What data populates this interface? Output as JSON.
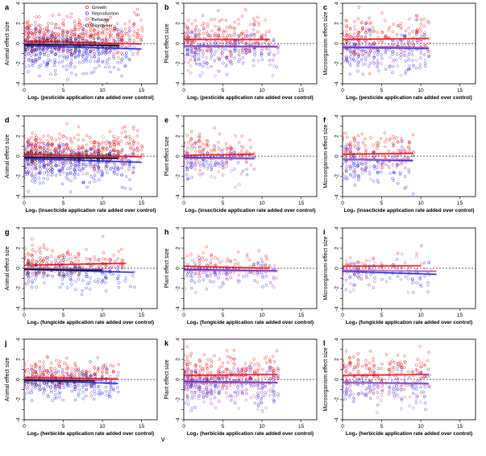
{
  "figure": {
    "stray_mark": "v",
    "colors": {
      "red": "#e8141c",
      "blue": "#2828e6",
      "purple": "#b45ab4",
      "black": "#111111",
      "zero_line": "#333333"
    }
  },
  "chart_data": [
    {
      "type": "scatter",
      "panel": "a",
      "ylabel": "Animal effect size",
      "xlabel": "Log₂ (pesticide application rate added over control)",
      "xlim": [
        0,
        17
      ],
      "ylim": [
        -4,
        4
      ],
      "xticks": [
        0,
        5,
        10,
        15
      ],
      "yticks": [
        -4,
        -3,
        -2,
        -1,
        0,
        1,
        2,
        3,
        4
      ],
      "legend": {
        "position": "top",
        "entries": [
          "Growth",
          "Reproduction",
          "Behavior",
          "Biomarker"
        ]
      },
      "series": [
        {
          "legend": "Growth",
          "color": "red",
          "x_range": [
            0,
            15
          ],
          "mean": 0.8,
          "sd": 0.9,
          "n": 380,
          "fit": [
            [
              0,
              0.25
            ],
            [
              15,
              -0.05
            ]
          ]
        },
        {
          "legend": "Reproduction",
          "color": "blue",
          "x_range": [
            0,
            14
          ],
          "mean": -0.8,
          "sd": 1.0,
          "n": 340,
          "fit": [
            [
              0,
              -0.2
            ],
            [
              15,
              -0.55
            ]
          ]
        },
        {
          "legend": "Behavior",
          "color": "purple",
          "x_range": [
            0,
            12
          ],
          "mean": -0.2,
          "sd": 0.7,
          "n": 60,
          "fit": [
            [
              0,
              0.0
            ],
            [
              12,
              -0.15
            ]
          ]
        },
        {
          "legend": "Biomarker",
          "color": "black",
          "x_range": [
            0,
            12
          ],
          "mean": -0.05,
          "sd": 0.3,
          "n": 140,
          "fit": [
            [
              0,
              -0.1
            ],
            [
              12,
              -0.2
            ]
          ]
        }
      ]
    },
    {
      "type": "scatter",
      "panel": "b",
      "ylabel": "Plant effect size",
      "xlabel": "Log₂ (pesticide application rate added over control)",
      "xlim": [
        0,
        17
      ],
      "ylim": [
        -4,
        4
      ],
      "xticks": [
        0,
        5,
        10,
        15
      ],
      "yticks": [
        -4,
        -3,
        -2,
        -1,
        0,
        1,
        2,
        3,
        4
      ],
      "series": [
        {
          "color": "red",
          "x_range": [
            0,
            11
          ],
          "mean": 0.7,
          "sd": 1.0,
          "n": 200,
          "fit": [
            [
              0,
              0.4
            ],
            [
              11,
              0.4
            ]
          ]
        },
        {
          "color": "blue",
          "x_range": [
            0,
            12
          ],
          "mean": -0.6,
          "sd": 0.9,
          "n": 150,
          "fit": [
            [
              0,
              -0.25
            ],
            [
              12,
              -0.3
            ]
          ]
        },
        {
          "color": "purple",
          "x_range": [
            0,
            12
          ],
          "mean": -1.0,
          "sd": 1.1,
          "n": 90,
          "fit": [
            [
              0,
              -0.3
            ],
            [
              12,
              -0.35
            ]
          ]
        }
      ]
    },
    {
      "type": "scatter",
      "panel": "c",
      "ylabel": "Microorganism effect size",
      "xlabel": "Log₂ (pesticide application rate added over control)",
      "xlim": [
        0,
        17
      ],
      "ylim": [
        -4,
        4
      ],
      "xticks": [
        0,
        5,
        10,
        15
      ],
      "yticks": [
        -4,
        -3,
        -2,
        -1,
        0,
        1,
        2,
        3,
        4
      ],
      "series": [
        {
          "color": "red",
          "x_range": [
            0,
            11
          ],
          "mean": 0.8,
          "sd": 1.0,
          "n": 180,
          "fit": [
            [
              0,
              0.4
            ],
            [
              11,
              0.5
            ]
          ]
        },
        {
          "color": "blue",
          "x_range": [
            0,
            11
          ],
          "mean": -0.9,
          "sd": 1.0,
          "n": 160,
          "fit": [
            [
              0,
              -0.4
            ],
            [
              11,
              -0.5
            ]
          ]
        },
        {
          "color": "purple",
          "x_range": [
            0,
            11
          ],
          "mean": -0.8,
          "sd": 1.0,
          "n": 60,
          "fit": [
            [
              0,
              -0.3
            ],
            [
              11,
              -0.4
            ]
          ]
        }
      ]
    },
    {
      "type": "scatter",
      "panel": "d",
      "ylabel": "Animal effect size",
      "xlabel": "Log₂ (insecticide application rate added over control)",
      "xlim": [
        0,
        17
      ],
      "ylim": [
        -4,
        4
      ],
      "xticks": [
        0,
        5,
        10,
        15
      ],
      "yticks": [
        -4,
        -3,
        -2,
        -1,
        0,
        1,
        2,
        3,
        4
      ],
      "series": [
        {
          "color": "red",
          "x_range": [
            0,
            15
          ],
          "mean": 0.7,
          "sd": 0.9,
          "n": 360,
          "fit": [
            [
              0,
              0.2
            ],
            [
              15,
              -0.05
            ]
          ]
        },
        {
          "color": "blue",
          "x_range": [
            0,
            14
          ],
          "mean": -0.8,
          "sd": 1.0,
          "n": 330,
          "fit": [
            [
              0,
              -0.2
            ],
            [
              15,
              -0.6
            ]
          ]
        },
        {
          "color": "purple",
          "x_range": [
            0,
            12
          ],
          "mean": -0.2,
          "sd": 0.7,
          "n": 50,
          "fit": [
            [
              0,
              0.0
            ],
            [
              12,
              -0.15
            ]
          ]
        },
        {
          "color": "black",
          "x_range": [
            0,
            12
          ],
          "mean": -0.05,
          "sd": 0.3,
          "n": 130,
          "fit": [
            [
              0,
              -0.1
            ],
            [
              12,
              -0.2
            ]
          ]
        }
      ]
    },
    {
      "type": "scatter",
      "panel": "e",
      "ylabel": "Plant effect size",
      "xlabel": "Log₂ (insecticide application rate added over control)",
      "xlim": [
        0,
        17
      ],
      "ylim": [
        -4,
        4
      ],
      "xticks": [
        0,
        5,
        10,
        15
      ],
      "yticks": [
        -4,
        -3,
        -2,
        -1,
        0,
        1,
        2,
        3,
        4
      ],
      "series": [
        {
          "color": "red",
          "x_range": [
            0,
            9
          ],
          "mean": 0.6,
          "sd": 0.8,
          "n": 110,
          "fit": [
            [
              0,
              0.1
            ],
            [
              9,
              0.2
            ]
          ]
        },
        {
          "color": "blue",
          "x_range": [
            0,
            9
          ],
          "mean": -0.5,
          "sd": 0.8,
          "n": 80,
          "fit": [
            [
              0,
              -0.1
            ],
            [
              9,
              -0.2
            ]
          ]
        },
        {
          "color": "purple",
          "x_range": [
            0,
            9
          ],
          "mean": -0.8,
          "sd": 1.0,
          "n": 40,
          "fit": [
            [
              0,
              -0.2
            ],
            [
              9,
              -0.25
            ]
          ]
        }
      ]
    },
    {
      "type": "scatter",
      "panel": "f",
      "ylabel": "Microorganism effect size",
      "xlabel": "Log₂ (insecticide application rate added over control)",
      "xlim": [
        0,
        17
      ],
      "ylim": [
        -4,
        4
      ],
      "xticks": [
        0,
        5,
        10,
        15
      ],
      "yticks": [
        -4,
        -3,
        -2,
        -1,
        0,
        1,
        2,
        3,
        4
      ],
      "series": [
        {
          "color": "red",
          "x_range": [
            0,
            9
          ],
          "mean": 0.6,
          "sd": 0.9,
          "n": 120,
          "fit": [
            [
              0,
              0.2
            ],
            [
              9,
              0.3
            ]
          ]
        },
        {
          "color": "blue",
          "x_range": [
            0,
            9
          ],
          "mean": -0.8,
          "sd": 0.9,
          "n": 110,
          "fit": [
            [
              0,
              -0.3
            ],
            [
              9,
              -0.45
            ]
          ]
        },
        {
          "color": "purple",
          "x_range": [
            0,
            9
          ],
          "mean": -0.6,
          "sd": 0.9,
          "n": 40,
          "fit": [
            [
              0,
              -0.3
            ],
            [
              9,
              -0.35
            ]
          ]
        }
      ]
    },
    {
      "type": "scatter",
      "panel": "g",
      "ylabel": "Animal effect size",
      "xlabel": "Log₂ (fungicide application rate added over control)",
      "xlim": [
        0,
        17
      ],
      "ylim": [
        -4,
        4
      ],
      "xticks": [
        0,
        5,
        10,
        15
      ],
      "yticks": [
        -4,
        -3,
        -2,
        -1,
        0,
        1,
        2,
        3,
        4
      ],
      "series": [
        {
          "color": "red",
          "x_range": [
            0,
            13
          ],
          "mean": 0.7,
          "sd": 0.7,
          "n": 150,
          "fit": [
            [
              0,
              0.3
            ],
            [
              13,
              0.5
            ]
          ]
        },
        {
          "color": "blue",
          "x_range": [
            0,
            14
          ],
          "mean": -0.7,
          "sd": 0.8,
          "n": 120,
          "fit": [
            [
              0,
              -0.1
            ],
            [
              14,
              -0.4
            ]
          ]
        },
        {
          "color": "purple",
          "x_range": [
            0,
            10
          ],
          "mean": -0.3,
          "sd": 0.6,
          "n": 30,
          "fit": [
            [
              0,
              0.0
            ],
            [
              10,
              -0.1
            ]
          ]
        },
        {
          "color": "black",
          "x_range": [
            0,
            10
          ],
          "mean": -0.1,
          "sd": 0.4,
          "n": 50,
          "fit": [
            [
              0,
              -0.1
            ],
            [
              10,
              -0.2
            ]
          ]
        }
      ]
    },
    {
      "type": "scatter",
      "panel": "h",
      "ylabel": "Plant effect size",
      "xlabel": "Log₂ (fungicide application rate added over control)",
      "xlim": [
        0,
        17
      ],
      "ylim": [
        -4,
        4
      ],
      "xticks": [
        0,
        5,
        10,
        15
      ],
      "yticks": [
        -4,
        -3,
        -2,
        -1,
        0,
        1,
        2,
        3,
        4
      ],
      "series": [
        {
          "color": "red",
          "x_range": [
            0,
            11
          ],
          "mean": 0.4,
          "sd": 0.7,
          "n": 80,
          "fit": [
            [
              0,
              0.2
            ],
            [
              11,
              0.0
            ]
          ]
        },
        {
          "color": "blue",
          "x_range": [
            0,
            12
          ],
          "mean": -0.5,
          "sd": 0.7,
          "n": 70,
          "fit": [
            [
              0,
              -0.1
            ],
            [
              12,
              -0.25
            ]
          ]
        },
        {
          "color": "purple",
          "x_range": [
            0,
            12
          ],
          "mean": -0.7,
          "sd": 0.9,
          "n": 40,
          "fit": [
            [
              0,
              -0.2
            ],
            [
              12,
              -0.3
            ]
          ]
        }
      ]
    },
    {
      "type": "scatter",
      "panel": "i",
      "ylabel": "Microorganism effect size",
      "xlabel": "Log₂ (fungicide application rate added over control)",
      "xlim": [
        0,
        17
      ],
      "ylim": [
        -4,
        4
      ],
      "xticks": [
        0,
        5,
        10,
        15
      ],
      "yticks": [
        -4,
        -3,
        -2,
        -1,
        0,
        1,
        2,
        3,
        4
      ],
      "series": [
        {
          "color": "red",
          "x_range": [
            0,
            10
          ],
          "mean": 0.3,
          "sd": 0.6,
          "n": 40,
          "fit": [
            [
              0,
              0.2
            ],
            [
              10,
              0.25
            ]
          ]
        },
        {
          "color": "blue",
          "x_range": [
            0,
            12
          ],
          "mean": -0.7,
          "sd": 0.9,
          "n": 70,
          "fit": [
            [
              0,
              -0.3
            ],
            [
              12,
              -0.6
            ]
          ]
        },
        {
          "color": "purple",
          "x_range": [
            0,
            12
          ],
          "mean": -0.6,
          "sd": 0.9,
          "n": 30,
          "fit": [
            [
              0,
              -0.2
            ],
            [
              12,
              -0.3
            ]
          ]
        }
      ]
    },
    {
      "type": "scatter",
      "panel": "j",
      "ylabel": "Animal effect size",
      "xlabel": "Log₂ (herbicide application rate added over control)",
      "xlim": [
        0,
        17
      ],
      "ylim": [
        -4,
        4
      ],
      "xticks": [
        0,
        5,
        10,
        15
      ],
      "yticks": [
        -4,
        -3,
        -2,
        -1,
        0,
        1,
        2,
        3,
        4
      ],
      "series": [
        {
          "color": "red",
          "x_range": [
            0,
            12
          ],
          "mean": 0.5,
          "sd": 0.7,
          "n": 200,
          "fit": [
            [
              0,
              0.2
            ],
            [
              12,
              0.05
            ]
          ]
        },
        {
          "color": "blue",
          "x_range": [
            0,
            12
          ],
          "mean": -0.6,
          "sd": 0.8,
          "n": 170,
          "fit": [
            [
              0,
              -0.1
            ],
            [
              12,
              -0.4
            ]
          ]
        },
        {
          "color": "purple",
          "x_range": [
            0,
            10
          ],
          "mean": -0.2,
          "sd": 0.6,
          "n": 30,
          "fit": [
            [
              0,
              0.0
            ],
            [
              10,
              -0.1
            ]
          ]
        },
        {
          "color": "black",
          "x_range": [
            0,
            9
          ],
          "mean": -0.05,
          "sd": 0.3,
          "n": 50,
          "fit": [
            [
              0,
              -0.05
            ],
            [
              9,
              -0.15
            ]
          ]
        }
      ]
    },
    {
      "type": "scatter",
      "panel": "k",
      "ylabel": "Plant effect size",
      "xlabel": "Log₂ (herbicide application rate added over control)",
      "xlim": [
        0,
        17
      ],
      "ylim": [
        -4,
        4
      ],
      "xticks": [
        0,
        5,
        10,
        15
      ],
      "yticks": [
        -4,
        -3,
        -2,
        -1,
        0,
        1,
        2,
        3,
        4
      ],
      "series": [
        {
          "color": "red",
          "x_range": [
            0,
            12
          ],
          "mean": 0.8,
          "sd": 0.9,
          "n": 240,
          "fit": [
            [
              0,
              0.4
            ],
            [
              12,
              0.5
            ]
          ]
        },
        {
          "color": "blue",
          "x_range": [
            0,
            12
          ],
          "mean": -0.6,
          "sd": 0.9,
          "n": 170,
          "fit": [
            [
              0,
              -0.2
            ],
            [
              12,
              -0.3
            ]
          ]
        },
        {
          "color": "purple",
          "x_range": [
            0,
            12
          ],
          "mean": -0.9,
          "sd": 1.0,
          "n": 120,
          "fit": [
            [
              0,
              -0.3
            ],
            [
              12,
              -0.35
            ]
          ]
        }
      ]
    },
    {
      "type": "scatter",
      "panel": "l",
      "ylabel": "Microorganism effect size",
      "xlabel": "Log₂ (herbicide application rate added over control)",
      "xlim": [
        0,
        17
      ],
      "ylim": [
        -4,
        4
      ],
      "xticks": [
        0,
        5,
        10,
        15
      ],
      "yticks": [
        -4,
        -3,
        -2,
        -1,
        0,
        1,
        2,
        3,
        4
      ],
      "series": [
        {
          "color": "red",
          "x_range": [
            0,
            11
          ],
          "mean": 0.9,
          "sd": 0.9,
          "n": 150,
          "fit": [
            [
              0,
              0.4
            ],
            [
              11,
              0.5
            ]
          ]
        },
        {
          "color": "blue",
          "x_range": [
            0,
            11
          ],
          "mean": -0.7,
          "sd": 0.9,
          "n": 110,
          "fit": [
            [
              0,
              -0.3
            ],
            [
              11,
              -0.4
            ]
          ]
        },
        {
          "color": "purple",
          "x_range": [
            0,
            11
          ],
          "mean": -1.0,
          "sd": 1.0,
          "n": 60,
          "fit": [
            [
              0,
              -0.3
            ],
            [
              11,
              -0.45
            ]
          ]
        }
      ]
    }
  ]
}
